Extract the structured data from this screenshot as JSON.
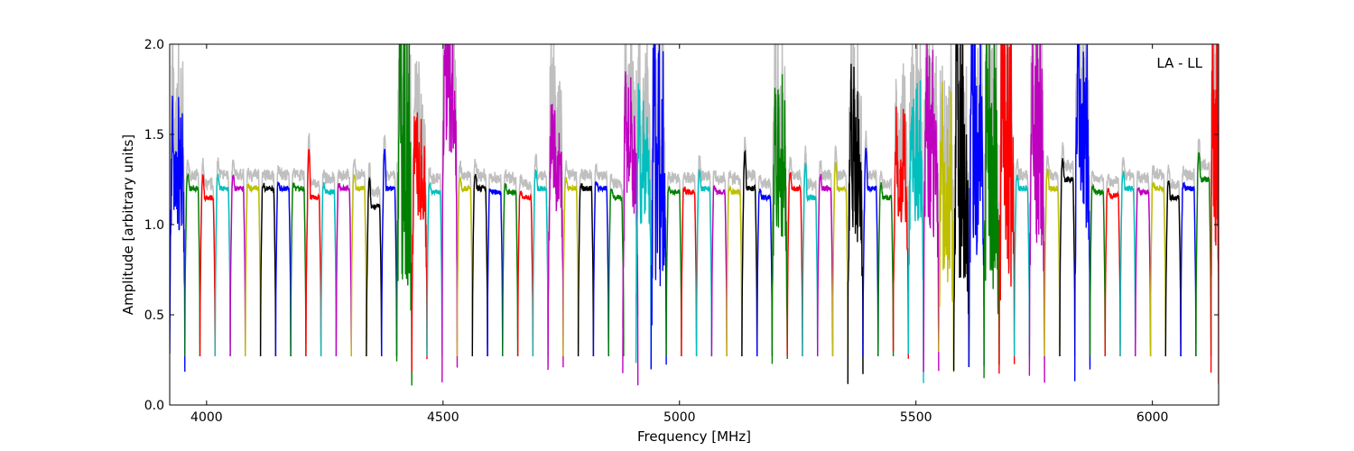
{
  "chart_data": {
    "type": "line",
    "title": "",
    "xlabel": "Frequency [MHz]",
    "ylabel": "Amplitude [arbitrary units]",
    "annotation": "LA - LL",
    "xlim": [
      3922,
      4140
    ],
    "xlim_note": "",
    "x_range": [
      3922,
      6140
    ],
    "ylim": [
      0.0,
      2.0
    ],
    "grid": false,
    "legend": "none",
    "x_ticks": [
      4000,
      4500,
      5000,
      5500,
      6000
    ],
    "x_tick_labels": [
      "4000",
      "4500",
      "5000",
      "5500",
      "6000"
    ],
    "y_ticks": [
      0.0,
      0.5,
      1.0,
      1.5,
      2.0
    ],
    "y_tick_labels": [
      "0.0",
      "0.5",
      "1.0",
      "1.5",
      "2.0"
    ],
    "background_series": {
      "color": "#bfbfbf",
      "description": "gray reference spectrum"
    },
    "channel_width_mhz": 32,
    "color_cycle": [
      "#0000ff",
      "#008000",
      "#ff0000",
      "#00bfbf",
      "#bf00bf",
      "#bfbf00",
      "#000000"
    ],
    "series": [
      {
        "start": 3922,
        "peak": 1.53,
        "level": 1.2,
        "color": "#0000ff"
      },
      {
        "start": 3954,
        "peak": 1.28,
        "level": 1.2,
        "color": "#008000"
      },
      {
        "start": 3986,
        "peak": 1.27,
        "level": 1.15,
        "color": "#ff0000"
      },
      {
        "start": 4018,
        "peak": 1.27,
        "level": 1.2,
        "color": "#00bfbf"
      },
      {
        "start": 4050,
        "peak": 1.27,
        "level": 1.2,
        "color": "#bf00bf"
      },
      {
        "start": 4082,
        "peak": 1.22,
        "level": 1.2,
        "color": "#bfbf00"
      },
      {
        "start": 4114,
        "peak": 1.22,
        "level": 1.2,
        "color": "#000000"
      },
      {
        "start": 4146,
        "peak": 1.23,
        "level": 1.2,
        "color": "#0000ff"
      },
      {
        "start": 4178,
        "peak": 1.22,
        "level": 1.2,
        "color": "#008000"
      },
      {
        "start": 4210,
        "peak": 1.42,
        "level": 1.15,
        "color": "#ff0000"
      },
      {
        "start": 4242,
        "peak": 1.22,
        "level": 1.18,
        "color": "#00bfbf"
      },
      {
        "start": 4274,
        "peak": 1.22,
        "level": 1.2,
        "color": "#bf00bf"
      },
      {
        "start": 4306,
        "peak": 1.27,
        "level": 1.2,
        "color": "#bfbf00"
      },
      {
        "start": 4338,
        "peak": 1.25,
        "level": 1.1,
        "color": "#000000"
      },
      {
        "start": 4370,
        "peak": 1.41,
        "level": 1.2,
        "color": "#0000ff"
      },
      {
        "start": 4402,
        "peak": 2.0,
        "level": 1.2,
        "color": "#008000"
      },
      {
        "start": 4434,
        "peak": 1.47,
        "level": 1.2,
        "color": "#ff0000"
      },
      {
        "start": 4466,
        "peak": 1.22,
        "level": 1.18,
        "color": "#00bfbf"
      },
      {
        "start": 4498,
        "peak": 2.0,
        "level": 1.6,
        "color": "#bf00bf"
      },
      {
        "start": 4530,
        "peak": 1.26,
        "level": 1.2,
        "color": "#bfbf00"
      },
      {
        "start": 4562,
        "peak": 1.27,
        "level": 1.2,
        "color": "#000000"
      },
      {
        "start": 4594,
        "peak": 1.19,
        "level": 1.18,
        "color": "#0000ff"
      },
      {
        "start": 4626,
        "peak": 1.22,
        "level": 1.18,
        "color": "#008000"
      },
      {
        "start": 4658,
        "peak": 1.18,
        "level": 1.15,
        "color": "#ff0000"
      },
      {
        "start": 4690,
        "peak": 1.3,
        "level": 1.2,
        "color": "#00bfbf"
      },
      {
        "start": 4722,
        "peak": 1.52,
        "level": 1.25,
        "color": "#bf00bf"
      },
      {
        "start": 4754,
        "peak": 1.25,
        "level": 1.2,
        "color": "#bfbf00"
      },
      {
        "start": 4786,
        "peak": 1.22,
        "level": 1.2,
        "color": "#000000"
      },
      {
        "start": 4818,
        "peak": 1.24,
        "level": 1.2,
        "color": "#0000ff"
      },
      {
        "start": 4850,
        "peak": 1.2,
        "level": 1.15,
        "color": "#008000"
      },
      {
        "start": 4880,
        "peak": 1.65,
        "level": 1.3,
        "color": "#bf00bf"
      },
      {
        "start": 4908,
        "peak": 1.63,
        "level": 1.25,
        "color": "#00bfbf"
      },
      {
        "start": 4940,
        "peak": 1.85,
        "level": 1.1,
        "color": "#0000ff"
      },
      {
        "start": 4972,
        "peak": 1.2,
        "level": 1.18,
        "color": "#008000"
      },
      {
        "start": 5004,
        "peak": 1.2,
        "level": 1.18,
        "color": "#ff0000"
      },
      {
        "start": 5036,
        "peak": 1.29,
        "level": 1.2,
        "color": "#00bfbf"
      },
      {
        "start": 5068,
        "peak": 1.21,
        "level": 1.18,
        "color": "#bf00bf"
      },
      {
        "start": 5100,
        "peak": 1.2,
        "level": 1.18,
        "color": "#bfbf00"
      },
      {
        "start": 5132,
        "peak": 1.4,
        "level": 1.2,
        "color": "#000000"
      },
      {
        "start": 5164,
        "peak": 1.19,
        "level": 1.15,
        "color": "#0000ff"
      },
      {
        "start": 5196,
        "peak": 1.57,
        "level": 1.15,
        "color": "#008000"
      },
      {
        "start": 5228,
        "peak": 1.28,
        "level": 1.2,
        "color": "#ff0000"
      },
      {
        "start": 5260,
        "peak": 1.34,
        "level": 1.15,
        "color": "#00bfbf"
      },
      {
        "start": 5292,
        "peak": 1.27,
        "level": 1.2,
        "color": "#bf00bf"
      },
      {
        "start": 5324,
        "peak": 1.34,
        "level": 1.2,
        "color": "#bfbf00"
      },
      {
        "start": 5356,
        "peak": 1.63,
        "level": 1.2,
        "color": "#000000"
      },
      {
        "start": 5388,
        "peak": 1.42,
        "level": 1.2,
        "color": "#0000ff"
      },
      {
        "start": 5420,
        "peak": 1.22,
        "level": 1.15,
        "color": "#008000"
      },
      {
        "start": 5452,
        "peak": 1.47,
        "level": 1.2,
        "color": "#ff0000"
      },
      {
        "start": 5484,
        "peak": 1.58,
        "level": 1.25,
        "color": "#00bfbf"
      },
      {
        "start": 5516,
        "peak": 1.85,
        "level": 1.3,
        "color": "#bf00bf"
      },
      {
        "start": 5548,
        "peak": 1.5,
        "level": 1.0,
        "color": "#bfbf00"
      },
      {
        "start": 5580,
        "peak": 1.95,
        "level": 1.2,
        "color": "#000000"
      },
      {
        "start": 5612,
        "peak": 2.0,
        "level": 1.3,
        "color": "#0000ff"
      },
      {
        "start": 5644,
        "peak": 2.0,
        "level": 1.2,
        "color": "#008000"
      },
      {
        "start": 5676,
        "peak": 1.98,
        "level": 1.2,
        "color": "#ff0000"
      },
      {
        "start": 5708,
        "peak": 1.27,
        "level": 1.2,
        "color": "#00bfbf"
      },
      {
        "start": 5740,
        "peak": 1.82,
        "level": 1.25,
        "color": "#bf00bf"
      },
      {
        "start": 5772,
        "peak": 1.3,
        "level": 1.2,
        "color": "#bfbf00"
      },
      {
        "start": 5804,
        "peak": 1.36,
        "level": 1.25,
        "color": "#000000"
      },
      {
        "start": 5836,
        "peak": 2.0,
        "level": 1.4,
        "color": "#0000ff"
      },
      {
        "start": 5868,
        "peak": 1.21,
        "level": 1.18,
        "color": "#008000"
      },
      {
        "start": 5900,
        "peak": 1.19,
        "level": 1.16,
        "color": "#ff0000"
      },
      {
        "start": 5932,
        "peak": 1.29,
        "level": 1.2,
        "color": "#00bfbf"
      },
      {
        "start": 5964,
        "peak": 1.2,
        "level": 1.18,
        "color": "#bf00bf"
      },
      {
        "start": 5996,
        "peak": 1.22,
        "level": 1.2,
        "color": "#bfbf00"
      },
      {
        "start": 6028,
        "peak": 1.24,
        "level": 1.15,
        "color": "#000000"
      },
      {
        "start": 6060,
        "peak": 1.22,
        "level": 1.2,
        "color": "#0000ff"
      },
      {
        "start": 6092,
        "peak": 1.4,
        "level": 1.25,
        "color": "#008000"
      },
      {
        "start": 6124,
        "peak": 1.95,
        "level": 1.3,
        "color": "#ff0000"
      }
    ]
  }
}
